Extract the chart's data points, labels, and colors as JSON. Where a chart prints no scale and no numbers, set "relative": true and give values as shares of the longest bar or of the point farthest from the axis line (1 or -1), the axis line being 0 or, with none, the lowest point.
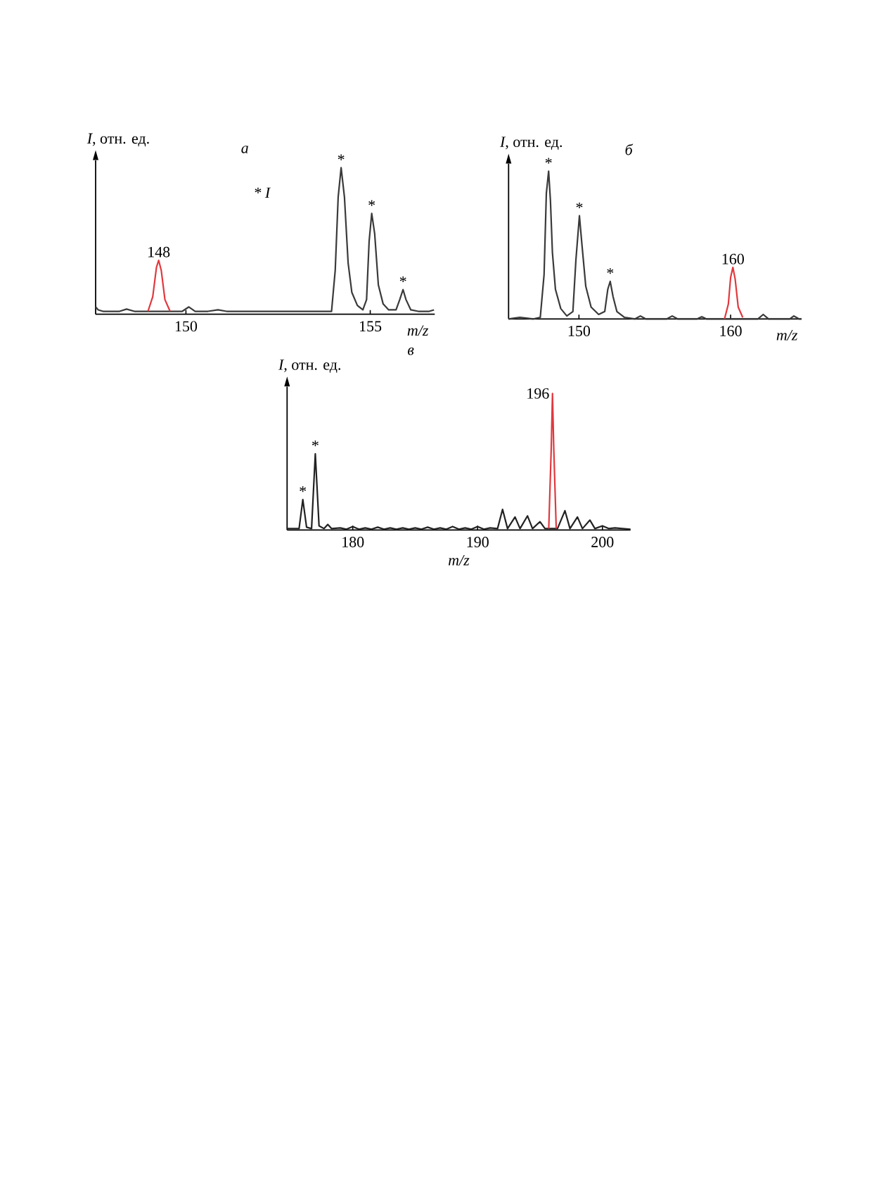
{
  "chart_data": [
    {
      "type": "line",
      "title": "а",
      "xlabel": "m/z",
      "ylabel": "*I*, отн. ед.",
      "relative": true,
      "xlim": [
        147.55,
        156.75
      ],
      "xticks": [
        150,
        155
      ],
      "series": [
        {
          "color": "#3a3a3a",
          "x": [
            147.55,
            147.62,
            147.75,
            148.2,
            148.39,
            148.6,
            148.97,
            149.57,
            149.9,
            150.08,
            150.25,
            150.6,
            150.87,
            151.1,
            152.5,
            153.95,
            154.05,
            154.13,
            154.21,
            154.3,
            154.4,
            154.5,
            154.65,
            154.8,
            154.9,
            154.97,
            155.04,
            155.12,
            155.22,
            155.35,
            155.5,
            155.7,
            155.8,
            155.89,
            155.97,
            156.1,
            156.3,
            156.6,
            156.73
          ],
          "values": [
            0.05,
            0.03,
            0.02,
            0.02,
            0.035,
            0.02,
            0.02,
            0.02,
            0.02,
            0.05,
            0.02,
            0.02,
            0.03,
            0.02,
            0.02,
            0.02,
            0.3,
            0.8,
            1,
            0.8,
            0.35,
            0.15,
            0.06,
            0.03,
            0.1,
            0.5,
            0.688,
            0.55,
            0.2,
            0.07,
            0.03,
            0.03,
            0.1,
            0.168,
            0.1,
            0.03,
            0.02,
            0.02,
            0.03
          ]
        },
        {
          "color": "#e0393e",
          "x": [
            148.97,
            149.1,
            149.2,
            149.26,
            149.33,
            149.43,
            149.57
          ],
          "values": [
            0.02,
            0.12,
            0.32,
            0.368,
            0.3,
            0.1,
            0.02
          ]
        }
      ],
      "annotations": [
        "* I",
        {
          "text": "148",
          "x": 149.26,
          "y": 0.368
        },
        {
          "text": "*",
          "x": 154.21,
          "y": 1
        },
        {
          "text": "*",
          "x": 155.04,
          "y": 0.688
        },
        {
          "text": "*",
          "x": 155.89,
          "y": 0.168
        }
      ]
    },
    {
      "type": "line",
      "title": "б",
      "xlabel": "m/z",
      "ylabel": "*I*, отн. ед.",
      "relative": true,
      "xlim": [
        145.36,
        164.68
      ],
      "xticks": [
        150,
        160
      ],
      "series": [
        {
          "color": "#3a3a3a",
          "x": [
            145.36,
            146.1,
            147.0,
            147.45,
            147.7,
            147.85,
            148.0,
            148.12,
            148.25,
            148.45,
            148.8,
            149.2,
            149.6,
            149.8,
            150.03,
            150.2,
            150.45,
            150.8,
            151.3,
            151.7,
            151.9,
            152.06,
            152.25,
            152.5,
            153.0,
            153.7,
            154.05,
            154.4,
            155.8,
            156.15,
            156.5,
            157.8,
            158.1,
            158.4,
            159.6,
            160.8,
            161.8,
            162.15,
            162.5,
            163.9,
            164.17,
            164.5,
            164.68
          ],
          "values": [
            0,
            0.01,
            0,
            0.01,
            0.3,
            0.85,
            1,
            0.8,
            0.45,
            0.2,
            0.07,
            0.02,
            0.05,
            0.4,
            0.698,
            0.5,
            0.22,
            0.08,
            0.03,
            0.05,
            0.2,
            0.254,
            0.15,
            0.05,
            0.01,
            0,
            0.02,
            0,
            0,
            0.02,
            0,
            0,
            0.015,
            0,
            0,
            0,
            0,
            0.03,
            0,
            0,
            0.02,
            0,
            0
          ]
        },
        {
          "color": "#e0393e",
          "x": [
            159.6,
            159.85,
            160.0,
            160.15,
            160.3,
            160.5,
            160.8
          ],
          "values": [
            0,
            0.1,
            0.28,
            0.349,
            0.27,
            0.08,
            0.01
          ]
        }
      ],
      "annotations": [
        {
          "text": "160",
          "x": 160.15,
          "y": 0.349
        },
        {
          "text": "*",
          "x": 148.0,
          "y": 1
        },
        {
          "text": "*",
          "x": 150.03,
          "y": 0.698
        },
        {
          "text": "*",
          "x": 152.06,
          "y": 0.254
        }
      ]
    },
    {
      "type": "line",
      "title": "в",
      "xlabel": "m/z",
      "ylabel": "*I*, отн. ед.",
      "relative": true,
      "xlim": [
        174.74,
        202.25
      ],
      "xticks": [
        180,
        190,
        200
      ],
      "series": [
        {
          "color": "#222222",
          "x": [
            174.74,
            175.7,
            176.0,
            176.3,
            176.7,
            177.0,
            177.3,
            177.7,
            178.0,
            178.3,
            179.0,
            179.5,
            180.0,
            180.5,
            181.0,
            181.5,
            182.0,
            182.5,
            183.0,
            183.5,
            184.0,
            184.5,
            185.0,
            185.5,
            186.0,
            186.5,
            187.0,
            187.5,
            188.0,
            188.5,
            189.0,
            189.5,
            190.0,
            190.5,
            191.0,
            191.6,
            192.0,
            192.4,
            193.0,
            193.4,
            194.0,
            194.4,
            195.0,
            195.4,
            195.7,
            196.4,
            197.0,
            197.4,
            198.0,
            198.4,
            199.0,
            199.4,
            200.0,
            200.5,
            201.0,
            202.25
          ],
          "values": [
            0.01,
            0.01,
            0.223,
            0.02,
            0.01,
            0.558,
            0.03,
            0.01,
            0.04,
            0.01,
            0.015,
            0.005,
            0.025,
            0.005,
            0.015,
            0.005,
            0.02,
            0.005,
            0.015,
            0.005,
            0.015,
            0.005,
            0.015,
            0.005,
            0.02,
            0.005,
            0.015,
            0.005,
            0.025,
            0.005,
            0.015,
            0.005,
            0.025,
            0.005,
            0.015,
            0.01,
            0.151,
            0.01,
            0.095,
            0.01,
            0.103,
            0.01,
            0.06,
            0.01,
            0.01,
            0.01,
            0.141,
            0.01,
            0.095,
            0.01,
            0.072,
            0.01,
            0.03,
            0.01,
            0.015,
            0.005
          ]
        },
        {
          "color": "#e0393e",
          "x": [
            195.7,
            195.9,
            196.0,
            196.1,
            196.3
          ],
          "values": [
            0.01,
            0.6,
            1,
            0.6,
            0.01
          ]
        }
      ],
      "annotations": [
        {
          "text": "*",
          "x": 176.0,
          "y": 0.223
        },
        {
          "text": "*",
          "x": 177.0,
          "y": 0.558
        },
        {
          "text": "196",
          "x": 196.0,
          "y": 1
        }
      ]
    }
  ]
}
